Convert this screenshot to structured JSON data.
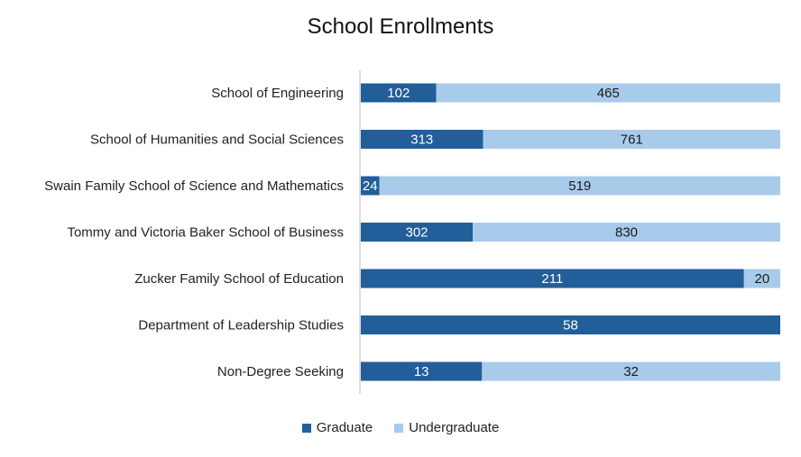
{
  "chart_data": {
    "type": "bar",
    "orientation": "horizontal",
    "stacked": "percent",
    "title": "School Enrollments",
    "categories": [
      "School of Engineering",
      "School of Humanities and Social Sciences",
      "Swain Family School of Science and Mathematics",
      "Tommy and Victoria Baker School of Business",
      "Zucker Family School of Education",
      "Department of Leadership Studies",
      "Non-Degree Seeking"
    ],
    "series": [
      {
        "name": "Graduate",
        "color": "#225e99",
        "values": [
          102,
          313,
          24,
          302,
          211,
          58,
          13
        ]
      },
      {
        "name": "Undergraduate",
        "color": "#a9cbeb",
        "values": [
          465,
          761,
          519,
          830,
          20,
          0,
          32
        ]
      }
    ],
    "legend_position": "bottom",
    "grid": false
  }
}
